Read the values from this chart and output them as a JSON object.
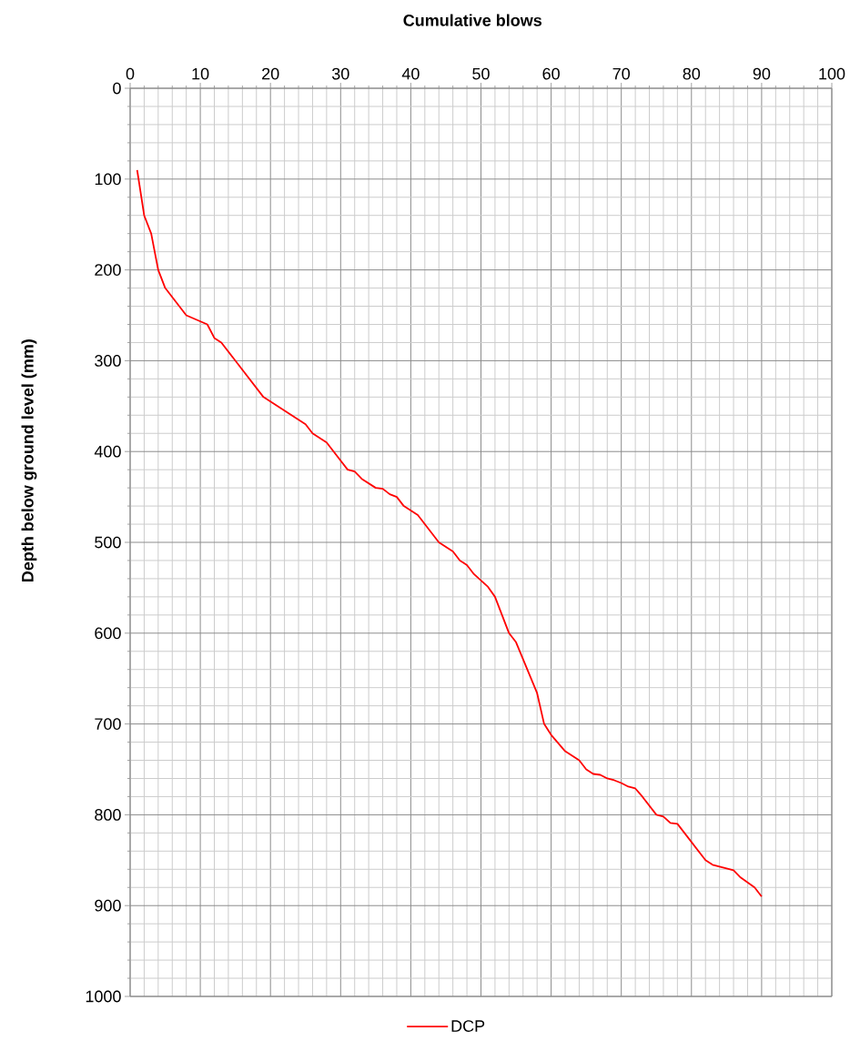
{
  "chart_data": {
    "type": "line",
    "xlabel": "Cumulative blows",
    "ylabel": "Depth below ground level (mm)",
    "xlim": [
      0,
      100
    ],
    "xticks": [
      0,
      10,
      20,
      30,
      40,
      50,
      60,
      70,
      80,
      90,
      100
    ],
    "ylim": [
      1000,
      0
    ],
    "yticks": [
      0,
      100,
      200,
      300,
      400,
      500,
      600,
      700,
      800,
      900,
      1000
    ],
    "grid": true,
    "legend": "bottom",
    "line_style": "solid",
    "series": [
      {
        "name": "DCP",
        "color": "#ff0000",
        "x": [
          1,
          2,
          3,
          4,
          5,
          8,
          11,
          12,
          13,
          19,
          25,
          26,
          28,
          31,
          32,
          33,
          35,
          36,
          37,
          38,
          39,
          41,
          44,
          46,
          47,
          48,
          49,
          50,
          51,
          52,
          54,
          55,
          58,
          59,
          60,
          62,
          64,
          65,
          66,
          67,
          68,
          69,
          70,
          71,
          72,
          73,
          75,
          76,
          77,
          78,
          82,
          83,
          85,
          86,
          87,
          89,
          90
        ],
        "values": [
          90,
          140,
          160,
          200,
          220,
          250,
          260,
          275,
          280,
          340,
          370,
          380,
          390,
          420,
          422,
          430,
          440,
          441,
          447,
          450,
          460,
          470,
          500,
          510,
          520,
          525,
          535,
          542,
          549,
          560,
          600,
          610,
          666,
          700,
          712,
          730,
          740,
          750,
          755,
          756,
          760,
          762,
          765,
          769,
          771,
          780,
          800,
          802,
          809,
          810,
          850,
          855,
          859,
          861,
          869,
          880,
          890
        ]
      }
    ]
  }
}
